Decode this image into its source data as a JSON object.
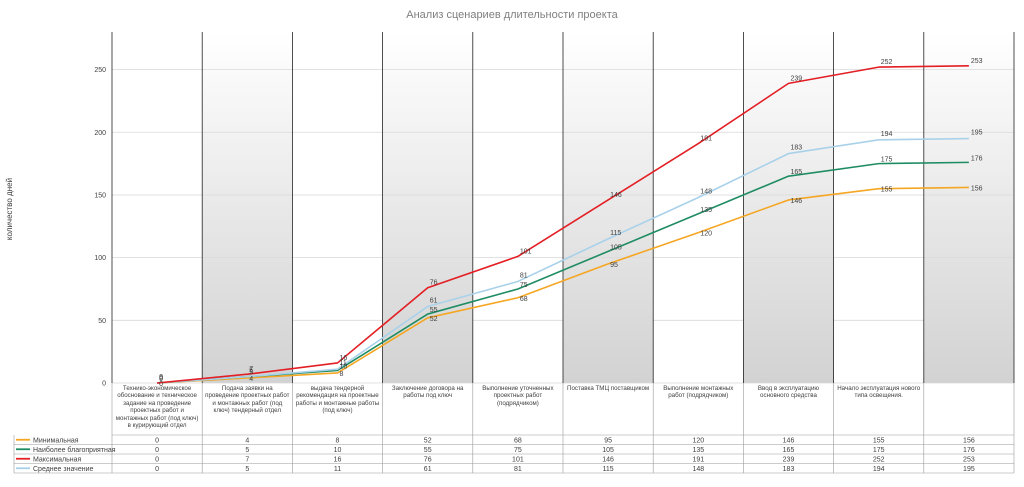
{
  "chart_data": {
    "type": "line",
    "title": "Анализ сценариев длительности проекта",
    "ylabel": "количество дней",
    "xlabel": "",
    "ylim": [
      0,
      280
    ],
    "yticks": [
      0,
      50,
      100,
      150,
      200,
      250
    ],
    "grid": true,
    "legend": "table",
    "categories": [
      "Технико-экономическое обоснование и техническое задание на проведение проектных работ и монтажных работ (под ключ) в курирующий отдел",
      "Подача заявки на проведение проектных работ и монтажных работ (под ключ) тендерный отдел",
      "выдача тендерной рекомендация на проектные работы и монтажные работы (под ключ)",
      "Заключение договора на работы под ключ",
      "Выполнение уточненных проектных работ (подрядчиком)",
      "Поставка ТМЦ поставщиком",
      "Выполнение монтажных работ (подрядчиком)",
      "Ввод в эксплуатацию основного средства",
      "Начало эксплуатация нового типа освещения.",
      ""
    ],
    "series": [
      {
        "name": "Минимальная",
        "color": "#f5a623",
        "values": [
          0,
          4,
          8,
          52,
          68,
          95,
          120,
          146,
          155,
          156
        ]
      },
      {
        "name": "Наиболее благоприятная",
        "color": "#1e8c63",
        "values": [
          0,
          5,
          10,
          55,
          75,
          105,
          135,
          165,
          175,
          176
        ]
      },
      {
        "name": "Максимальная",
        "color": "#e31e24",
        "values": [
          0,
          7,
          16,
          76,
          101,
          146,
          191,
          239,
          252,
          253
        ]
      },
      {
        "name": "Среднее значение",
        "color": "#a9d1ea",
        "values": [
          0,
          5,
          11,
          61,
          81,
          115,
          148,
          183,
          194,
          195
        ]
      }
    ]
  }
}
